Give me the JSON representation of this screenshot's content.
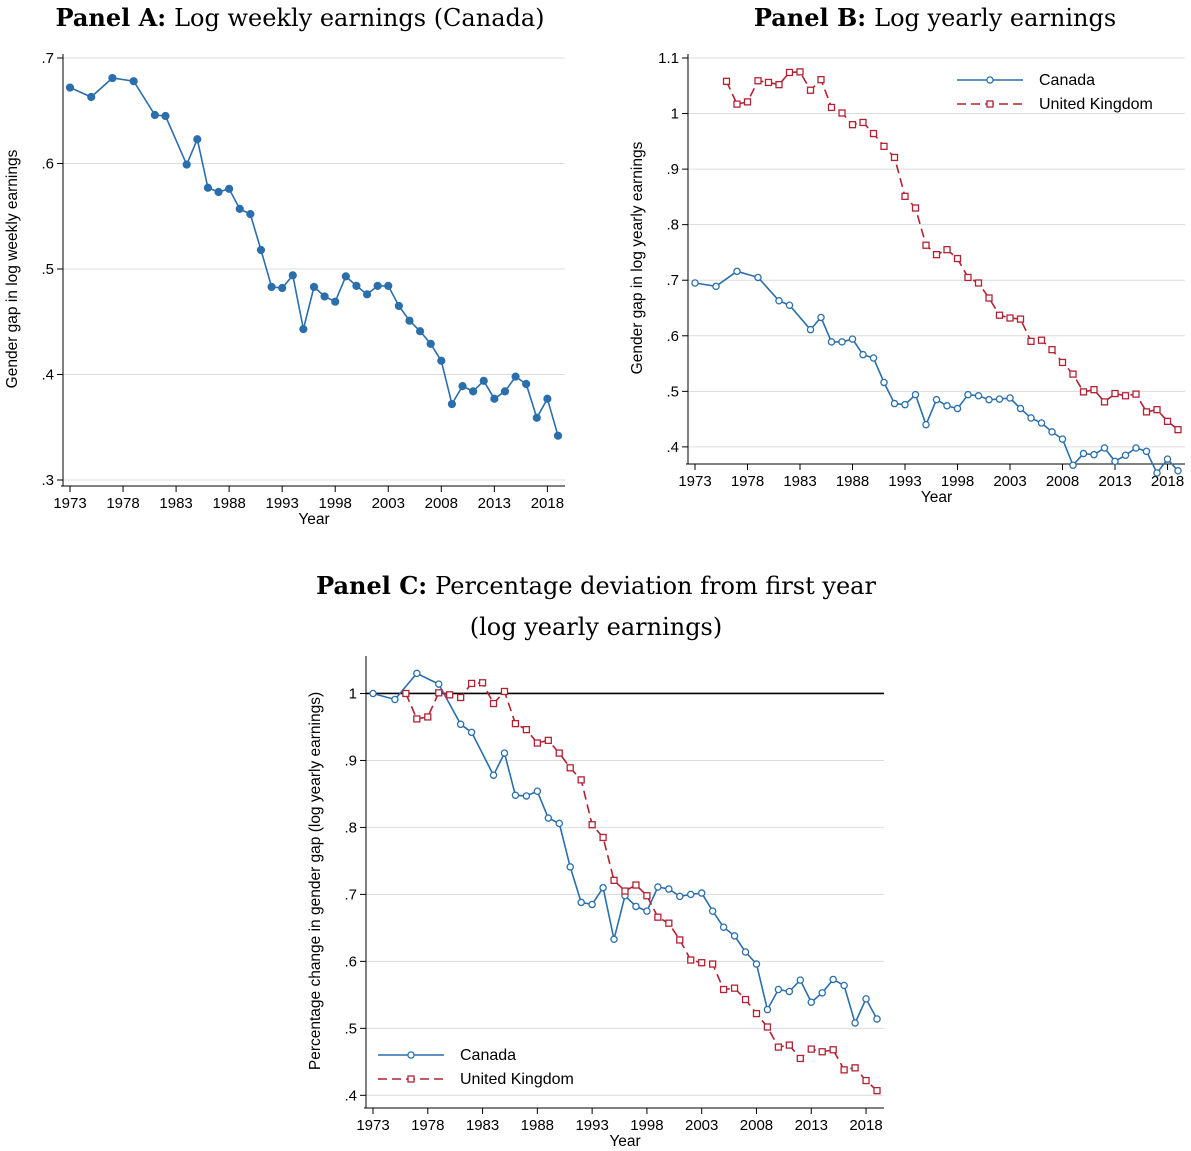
{
  "colors": {
    "canada": "#2a6fac",
    "uk": "#b22234",
    "grid": "#dcdcdc",
    "axis": "#000000"
  },
  "chart_data": [
    {
      "panel": "A",
      "type": "line",
      "title_label": "Panel A:",
      "title": "Log weekly earnings (Canada)",
      "title_line2": "",
      "xlabel": "Year",
      "ylabel": "Gender gap in log weekly earnings",
      "xlim": [
        1973,
        2019
      ],
      "ylim": [
        0.3,
        0.7
      ],
      "xticks": [
        1973,
        1978,
        1983,
        1988,
        1993,
        1998,
        2003,
        2008,
        2013,
        2018
      ],
      "xtick_labels": [
        "1973",
        "1978",
        "1983",
        "1988",
        "1993",
        "1998",
        "2003",
        "2008",
        "2013",
        "2018"
      ],
      "yticks": [
        0.3,
        0.4,
        0.5,
        0.6,
        0.7
      ],
      "ytick_labels": [
        ".3",
        ".4",
        ".5",
        ".6",
        ".7"
      ],
      "grid": true,
      "legend": null,
      "series": [
        {
          "key": "canada",
          "marker": "filled-circle",
          "dash": "solid",
          "points": [
            [
              1973,
              0.672
            ],
            [
              1975,
              0.663
            ],
            [
              1977,
              0.681
            ],
            [
              1979,
              0.678
            ],
            [
              1981,
              0.646
            ],
            [
              1982,
              0.645
            ],
            [
              1984,
              0.599
            ],
            [
              1985,
              0.623
            ],
            [
              1986,
              0.577
            ],
            [
              1987,
              0.573
            ],
            [
              1988,
              0.576
            ],
            [
              1989,
              0.557
            ],
            [
              1990,
              0.552
            ],
            [
              1991,
              0.518
            ],
            [
              1992,
              0.483
            ],
            [
              1993,
              0.482
            ],
            [
              1994,
              0.494
            ],
            [
              1995,
              0.443
            ],
            [
              1996,
              0.483
            ],
            [
              1997,
              0.474
            ],
            [
              1998,
              0.469
            ],
            [
              1999,
              0.493
            ],
            [
              2000,
              0.484
            ],
            [
              2001,
              0.476
            ],
            [
              2002,
              0.484
            ],
            [
              2003,
              0.484
            ],
            [
              2004,
              0.465
            ],
            [
              2005,
              0.451
            ],
            [
              2006,
              0.441
            ],
            [
              2007,
              0.429
            ],
            [
              2008,
              0.413
            ],
            [
              2009,
              0.372
            ],
            [
              2010,
              0.389
            ],
            [
              2011,
              0.384
            ],
            [
              2012,
              0.394
            ],
            [
              2013,
              0.377
            ],
            [
              2014,
              0.384
            ],
            [
              2015,
              0.398
            ],
            [
              2016,
              0.391
            ],
            [
              2017,
              0.359
            ],
            [
              2018,
              0.377
            ],
            [
              2019,
              0.342
            ]
          ]
        }
      ]
    },
    {
      "panel": "B",
      "type": "line",
      "title_label": "Panel B:",
      "title": "Log yearly earnings",
      "title_line2": "",
      "xlabel": "Year",
      "ylabel": "Gender gap in log yearly earnings",
      "xlim": [
        1973,
        2019
      ],
      "ylim": [
        0.38,
        1.1
      ],
      "xticks": [
        1973,
        1978,
        1983,
        1988,
        1993,
        1998,
        2003,
        2008,
        2013,
        2018
      ],
      "xtick_labels": [
        "1973",
        "1978",
        "1983",
        "1988",
        "1993",
        "1998",
        "2003",
        "2008",
        "2013",
        "2018"
      ],
      "yticks": [
        0.4,
        0.5,
        0.6,
        0.7,
        0.8,
        0.9,
        1.0,
        1.1
      ],
      "ytick_labels": [
        ".4",
        ".5",
        ".6",
        ".7",
        ".8",
        ".9",
        "1",
        "1.1"
      ],
      "grid": true,
      "legend": {
        "placement": "top-right",
        "entries": [
          "Canada",
          "United Kingdom"
        ]
      },
      "series": [
        {
          "name": "Canada",
          "key": "canada",
          "marker": "hollow-circle",
          "dash": "solid",
          "points": [
            [
              1973,
              0.695
            ],
            [
              1975,
              0.689
            ],
            [
              1977,
              0.716
            ],
            [
              1979,
              0.705
            ],
            [
              1981,
              0.663
            ],
            [
              1982,
              0.655
            ],
            [
              1984,
              0.611
            ],
            [
              1985,
              0.633
            ],
            [
              1986,
              0.589
            ],
            [
              1987,
              0.589
            ],
            [
              1988,
              0.594
            ],
            [
              1989,
              0.566
            ],
            [
              1990,
              0.56
            ],
            [
              1991,
              0.516
            ],
            [
              1992,
              0.478
            ],
            [
              1993,
              0.476
            ],
            [
              1994,
              0.494
            ],
            [
              1995,
              0.44
            ],
            [
              1996,
              0.485
            ],
            [
              1997,
              0.474
            ],
            [
              1998,
              0.469
            ],
            [
              1999,
              0.494
            ],
            [
              2000,
              0.492
            ],
            [
              2001,
              0.485
            ],
            [
              2002,
              0.486
            ],
            [
              2003,
              0.488
            ],
            [
              2004,
              0.469
            ],
            [
              2005,
              0.452
            ],
            [
              2006,
              0.443
            ],
            [
              2007,
              0.427
            ],
            [
              2008,
              0.414
            ],
            [
              2009,
              0.367
            ],
            [
              2010,
              0.388
            ],
            [
              2011,
              0.386
            ],
            [
              2012,
              0.398
            ],
            [
              2013,
              0.374
            ],
            [
              2014,
              0.385
            ],
            [
              2015,
              0.398
            ],
            [
              2016,
              0.392
            ],
            [
              2017,
              0.353
            ],
            [
              2018,
              0.378
            ],
            [
              2019,
              0.357
            ]
          ]
        },
        {
          "name": "United Kingdom",
          "key": "uk",
          "marker": "hollow-square",
          "dash": "dashed",
          "points": [
            [
              1976,
              1.058
            ],
            [
              1977,
              1.017
            ],
            [
              1978,
              1.021
            ],
            [
              1979,
              1.059
            ],
            [
              1980,
              1.056
            ],
            [
              1981,
              1.052
            ],
            [
              1982,
              1.074
            ],
            [
              1983,
              1.075
            ],
            [
              1984,
              1.042
            ],
            [
              1985,
              1.061
            ],
            [
              1986,
              1.011
            ],
            [
              1987,
              1.001
            ],
            [
              1988,
              0.98
            ],
            [
              1989,
              0.984
            ],
            [
              1990,
              0.964
            ],
            [
              1991,
              0.941
            ],
            [
              1992,
              0.921
            ],
            [
              1993,
              0.851
            ],
            [
              1994,
              0.83
            ],
            [
              1995,
              0.763
            ],
            [
              1996,
              0.746
            ],
            [
              1997,
              0.755
            ],
            [
              1998,
              0.739
            ],
            [
              1999,
              0.705
            ],
            [
              2000,
              0.695
            ],
            [
              2001,
              0.668
            ],
            [
              2002,
              0.637
            ],
            [
              2003,
              0.632
            ],
            [
              2004,
              0.63
            ],
            [
              2005,
              0.59
            ],
            [
              2006,
              0.592
            ],
            [
              2007,
              0.575
            ],
            [
              2008,
              0.552
            ],
            [
              2009,
              0.531
            ],
            [
              2010,
              0.499
            ],
            [
              2011,
              0.503
            ],
            [
              2012,
              0.481
            ],
            [
              2013,
              0.496
            ],
            [
              2014,
              0.492
            ],
            [
              2015,
              0.495
            ],
            [
              2016,
              0.463
            ],
            [
              2017,
              0.467
            ],
            [
              2018,
              0.446
            ],
            [
              2019,
              0.431
            ]
          ]
        }
      ]
    },
    {
      "panel": "C",
      "type": "line",
      "title_label": "Panel C:",
      "title": "Percentage deviation from first year",
      "title_line2": "(log yearly earnings)",
      "xlabel": "Year",
      "ylabel": "Percentage change in gender gap (log yearly earnings)",
      "xlim": [
        1973,
        2019
      ],
      "ylim": [
        0.39,
        1.05
      ],
      "xticks": [
        1973,
        1978,
        1983,
        1988,
        1993,
        1998,
        2003,
        2008,
        2013,
        2018
      ],
      "xtick_labels": [
        "1973",
        "1978",
        "1983",
        "1988",
        "1993",
        "1998",
        "2003",
        "2008",
        "2013",
        "2018"
      ],
      "yticks": [
        0.4,
        0.5,
        0.6,
        0.7,
        0.8,
        0.9,
        1.0
      ],
      "ytick_labels": [
        ".4",
        ".5",
        ".6",
        ".7",
        ".8",
        ".9",
        "1"
      ],
      "grid": true,
      "reference_line": 1.0,
      "legend": {
        "placement": "bottom-left",
        "entries": [
          "Canada",
          "United Kingdom"
        ]
      },
      "series": [
        {
          "name": "Canada",
          "key": "canada",
          "marker": "hollow-circle",
          "dash": "solid",
          "points": [
            [
              1973,
              1.0
            ],
            [
              1975,
              0.991
            ],
            [
              1977,
              1.03
            ],
            [
              1979,
              1.014
            ],
            [
              1981,
              0.954
            ],
            [
              1982,
              0.942
            ],
            [
              1984,
              0.878
            ],
            [
              1985,
              0.911
            ],
            [
              1986,
              0.848
            ],
            [
              1987,
              0.847
            ],
            [
              1988,
              0.854
            ],
            [
              1989,
              0.814
            ],
            [
              1990,
              0.806
            ],
            [
              1991,
              0.741
            ],
            [
              1992,
              0.688
            ],
            [
              1993,
              0.685
            ],
            [
              1994,
              0.71
            ],
            [
              1995,
              0.633
            ],
            [
              1996,
              0.698
            ],
            [
              1997,
              0.682
            ],
            [
              1998,
              0.675
            ],
            [
              1999,
              0.711
            ],
            [
              2000,
              0.708
            ],
            [
              2001,
              0.697
            ],
            [
              2002,
              0.7
            ],
            [
              2003,
              0.702
            ],
            [
              2004,
              0.675
            ],
            [
              2005,
              0.651
            ],
            [
              2006,
              0.638
            ],
            [
              2007,
              0.614
            ],
            [
              2008,
              0.596
            ],
            [
              2009,
              0.528
            ],
            [
              2010,
              0.558
            ],
            [
              2011,
              0.555
            ],
            [
              2012,
              0.572
            ],
            [
              2013,
              0.539
            ],
            [
              2014,
              0.553
            ],
            [
              2015,
              0.573
            ],
            [
              2016,
              0.564
            ],
            [
              2017,
              0.508
            ],
            [
              2018,
              0.544
            ],
            [
              2019,
              0.514
            ]
          ]
        },
        {
          "name": "United Kingdom",
          "key": "uk",
          "marker": "hollow-square",
          "dash": "dashed",
          "points": [
            [
              1976,
              1.0
            ],
            [
              1977,
              0.962
            ],
            [
              1978,
              0.965
            ],
            [
              1979,
              1.001
            ],
            [
              1980,
              0.998
            ],
            [
              1981,
              0.994
            ],
            [
              1982,
              1.015
            ],
            [
              1983,
              1.016
            ],
            [
              1984,
              0.985
            ],
            [
              1985,
              1.003
            ],
            [
              1986,
              0.955
            ],
            [
              1987,
              0.946
            ],
            [
              1988,
              0.926
            ],
            [
              1989,
              0.93
            ],
            [
              1990,
              0.911
            ],
            [
              1991,
              0.889
            ],
            [
              1992,
              0.871
            ],
            [
              1993,
              0.804
            ],
            [
              1994,
              0.785
            ],
            [
              1995,
              0.721
            ],
            [
              1996,
              0.705
            ],
            [
              1997,
              0.714
            ],
            [
              1998,
              0.698
            ],
            [
              1999,
              0.666
            ],
            [
              2000,
              0.657
            ],
            [
              2001,
              0.632
            ],
            [
              2002,
              0.602
            ],
            [
              2003,
              0.598
            ],
            [
              2004,
              0.596
            ],
            [
              2005,
              0.558
            ],
            [
              2006,
              0.56
            ],
            [
              2007,
              0.543
            ],
            [
              2008,
              0.522
            ],
            [
              2009,
              0.502
            ],
            [
              2010,
              0.472
            ],
            [
              2011,
              0.475
            ],
            [
              2012,
              0.455
            ],
            [
              2013,
              0.469
            ],
            [
              2014,
              0.465
            ],
            [
              2015,
              0.468
            ],
            [
              2016,
              0.438
            ],
            [
              2017,
              0.441
            ],
            [
              2018,
              0.422
            ],
            [
              2019,
              0.407
            ]
          ]
        }
      ]
    }
  ]
}
